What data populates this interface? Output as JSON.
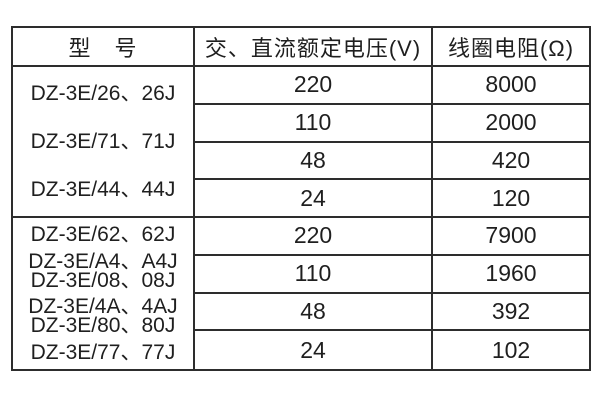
{
  "table": {
    "headers": {
      "model": "型　号",
      "voltage": "交、直流额定电压(V)",
      "resistance": "线圈电阻(Ω)"
    },
    "groups": [
      {
        "models": [
          "DZ-3E/26、26J",
          "DZ-3E/71、71J",
          "DZ-3E/44、44J"
        ],
        "rows": [
          {
            "voltage": "220",
            "resistance": "8000"
          },
          {
            "voltage": "110",
            "resistance": "2000"
          },
          {
            "voltage": "48",
            "resistance": "420"
          },
          {
            "voltage": "24",
            "resistance": "120"
          }
        ]
      },
      {
        "models": [
          "DZ-3E/62、62J",
          "DZ-3E/A4、A4J",
          "DZ-3E/08、08J",
          "DZ-3E/4A、4AJ",
          "DZ-3E/80、80J",
          "DZ-3E/77、77J"
        ],
        "rows": [
          {
            "voltage": "220",
            "resistance": "7900"
          },
          {
            "voltage": "110",
            "resistance": "1960"
          },
          {
            "voltage": "48",
            "resistance": "392"
          },
          {
            "voltage": "24",
            "resistance": "102"
          }
        ]
      }
    ],
    "colors": {
      "border": "#2d2d2d",
      "text": "#1f1f1f",
      "background": "#ffffff"
    }
  }
}
